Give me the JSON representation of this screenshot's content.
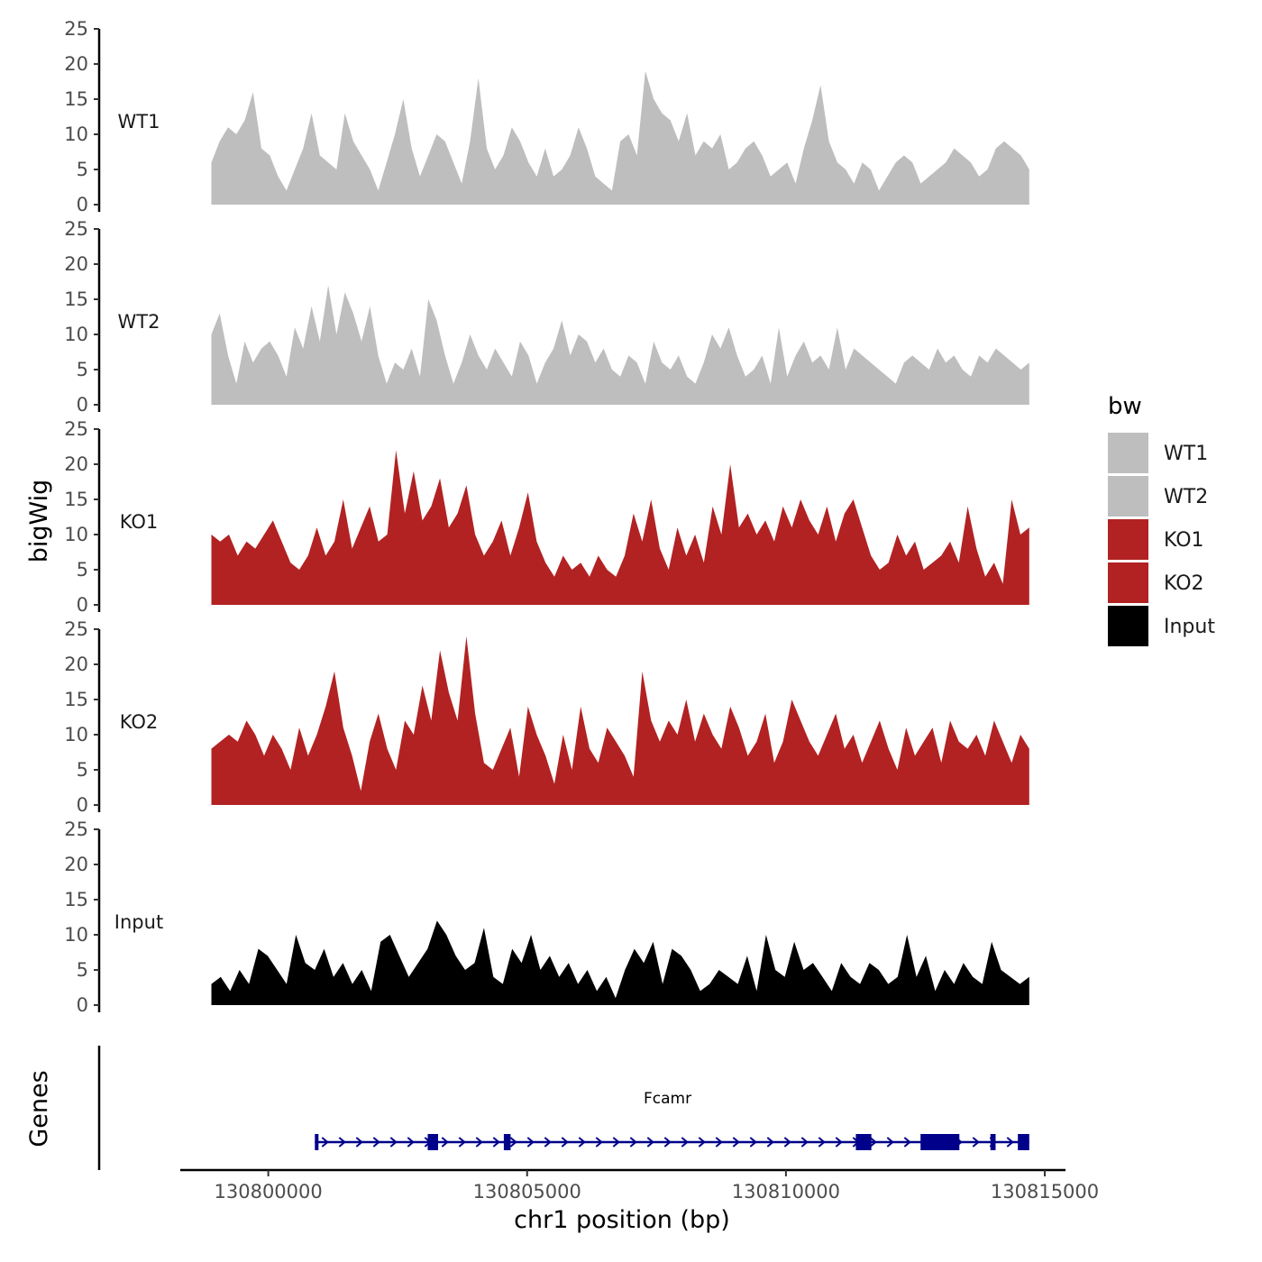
{
  "chart_data": {
    "type": "area",
    "title": "",
    "ylabel": "bigWig",
    "xlabel": "chr1 position (bp)",
    "genes_label": "Genes",
    "ylim": [
      0,
      25
    ],
    "yticks": [
      0,
      5,
      10,
      15,
      20,
      25
    ],
    "xlim": [
      130798300,
      130815400
    ],
    "xticks": [
      130800000,
      130805000,
      130810000,
      130815000
    ],
    "x_range": [
      130798900,
      130814700
    ],
    "legend": {
      "title": "bw",
      "position": "right",
      "entries": [
        {
          "label": "WT1",
          "color": "#bebebe"
        },
        {
          "label": "WT2",
          "color": "#bebebe"
        },
        {
          "label": "KO1",
          "color": "#b22222"
        },
        {
          "label": "KO2",
          "color": "#b22222"
        },
        {
          "label": "Input",
          "color": "#000000"
        }
      ]
    },
    "series": [
      {
        "name": "WT1",
        "color": "#bebebe",
        "values": [
          6,
          9,
          11,
          10,
          12,
          16,
          8,
          7,
          4,
          2,
          5,
          8,
          13,
          7,
          6,
          5,
          13,
          9,
          7,
          5,
          2,
          6,
          10,
          15,
          8,
          4,
          7,
          10,
          9,
          6,
          3,
          9,
          18,
          8,
          5,
          7,
          11,
          9,
          6,
          4,
          8,
          4,
          5,
          7,
          11,
          8,
          4,
          3,
          2,
          9,
          10,
          7,
          19,
          15,
          13,
          12,
          9,
          13,
          7,
          9,
          8,
          10,
          5,
          6,
          8,
          9,
          7,
          4,
          5,
          6,
          3,
          8,
          12,
          17,
          9,
          6,
          5,
          3,
          6,
          5,
          2,
          4,
          6,
          7,
          6,
          3,
          4,
          5,
          6,
          8,
          7,
          6,
          4,
          5,
          8,
          9,
          8,
          7,
          5
        ]
      },
      {
        "name": "WT2",
        "color": "#bebebe",
        "values": [
          10,
          13,
          7,
          3,
          9,
          6,
          8,
          9,
          7,
          4,
          11,
          8,
          14,
          9,
          17,
          10,
          16,
          13,
          9,
          14,
          7,
          3,
          6,
          5,
          8,
          4,
          15,
          12,
          7,
          3,
          6,
          10,
          7,
          5,
          8,
          6,
          4,
          9,
          7,
          3,
          6,
          8,
          12,
          7,
          10,
          9,
          6,
          8,
          5,
          4,
          7,
          6,
          3,
          9,
          6,
          5,
          7,
          4,
          3,
          6,
          10,
          8,
          11,
          7,
          4,
          5,
          7,
          3,
          11,
          4,
          7,
          9,
          6,
          7,
          5,
          11,
          5,
          8,
          7,
          6,
          5,
          4,
          3,
          6,
          7,
          6,
          5,
          8,
          6,
          7,
          5,
          4,
          7,
          6,
          8,
          7,
          6,
          5,
          6
        ]
      },
      {
        "name": "KO1",
        "color": "#b22222",
        "values": [
          10,
          9,
          10,
          7,
          9,
          8,
          10,
          12,
          9,
          6,
          5,
          7,
          11,
          7,
          9,
          15,
          8,
          11,
          14,
          9,
          10,
          22,
          13,
          19,
          12,
          14,
          18,
          11,
          13,
          17,
          10,
          7,
          9,
          12,
          7,
          11,
          16,
          9,
          6,
          4,
          7,
          5,
          6,
          4,
          7,
          5,
          4,
          7,
          13,
          9,
          15,
          8,
          5,
          11,
          7,
          10,
          6,
          14,
          10,
          20,
          11,
          13,
          10,
          12,
          9,
          14,
          11,
          15,
          12,
          10,
          14,
          9,
          13,
          15,
          11,
          7,
          5,
          6,
          10,
          7,
          9,
          5,
          6,
          7,
          9,
          6,
          14,
          8,
          4,
          6,
          3,
          15,
          10,
          11
        ]
      },
      {
        "name": "KO2",
        "color": "#b22222",
        "values": [
          8,
          9,
          10,
          9,
          12,
          10,
          7,
          10,
          8,
          5,
          11,
          7,
          10,
          14,
          19,
          11,
          7,
          2,
          9,
          13,
          8,
          5,
          12,
          10,
          17,
          12,
          22,
          16,
          12,
          24,
          13,
          6,
          5,
          8,
          11,
          4,
          14,
          10,
          7,
          3,
          10,
          5,
          14,
          8,
          6,
          11,
          9,
          7,
          4,
          19,
          12,
          9,
          12,
          10,
          15,
          9,
          13,
          10,
          8,
          14,
          11,
          7,
          9,
          13,
          6,
          9,
          15,
          12,
          9,
          7,
          10,
          13,
          8,
          10,
          6,
          9,
          12,
          8,
          5,
          11,
          7,
          9,
          11,
          6,
          12,
          9,
          8,
          10,
          7,
          12,
          9,
          6,
          10,
          8
        ]
      },
      {
        "name": "Input",
        "color": "#000000",
        "values": [
          3,
          4,
          2,
          5,
          3,
          8,
          7,
          5,
          3,
          10,
          6,
          5,
          8,
          4,
          6,
          3,
          5,
          2,
          9,
          10,
          7,
          4,
          6,
          8,
          12,
          10,
          7,
          5,
          6,
          11,
          4,
          3,
          8,
          6,
          10,
          5,
          7,
          4,
          6,
          3,
          5,
          2,
          4,
          1,
          5,
          8,
          6,
          9,
          3,
          8,
          7,
          5,
          2,
          3,
          5,
          4,
          3,
          7,
          2,
          10,
          5,
          4,
          9,
          5,
          6,
          4,
          2,
          6,
          4,
          3,
          6,
          5,
          3,
          4,
          10,
          4,
          7,
          2,
          5,
          3,
          6,
          4,
          3,
          9,
          5,
          4,
          3,
          4
        ]
      }
    ],
    "gene_track": {
      "gene": "Fcamr",
      "strand": "+",
      "color": "#00008b",
      "start": 130800900,
      "end": 130814700,
      "exons": [
        [
          130800900,
          130800960
        ],
        [
          130803080,
          130803280
        ],
        [
          130804550,
          130804680
        ],
        [
          130811350,
          130811650
        ],
        [
          130812600,
          130813350
        ],
        [
          130813950,
          130814050
        ],
        [
          130814480,
          130814700
        ]
      ]
    }
  }
}
